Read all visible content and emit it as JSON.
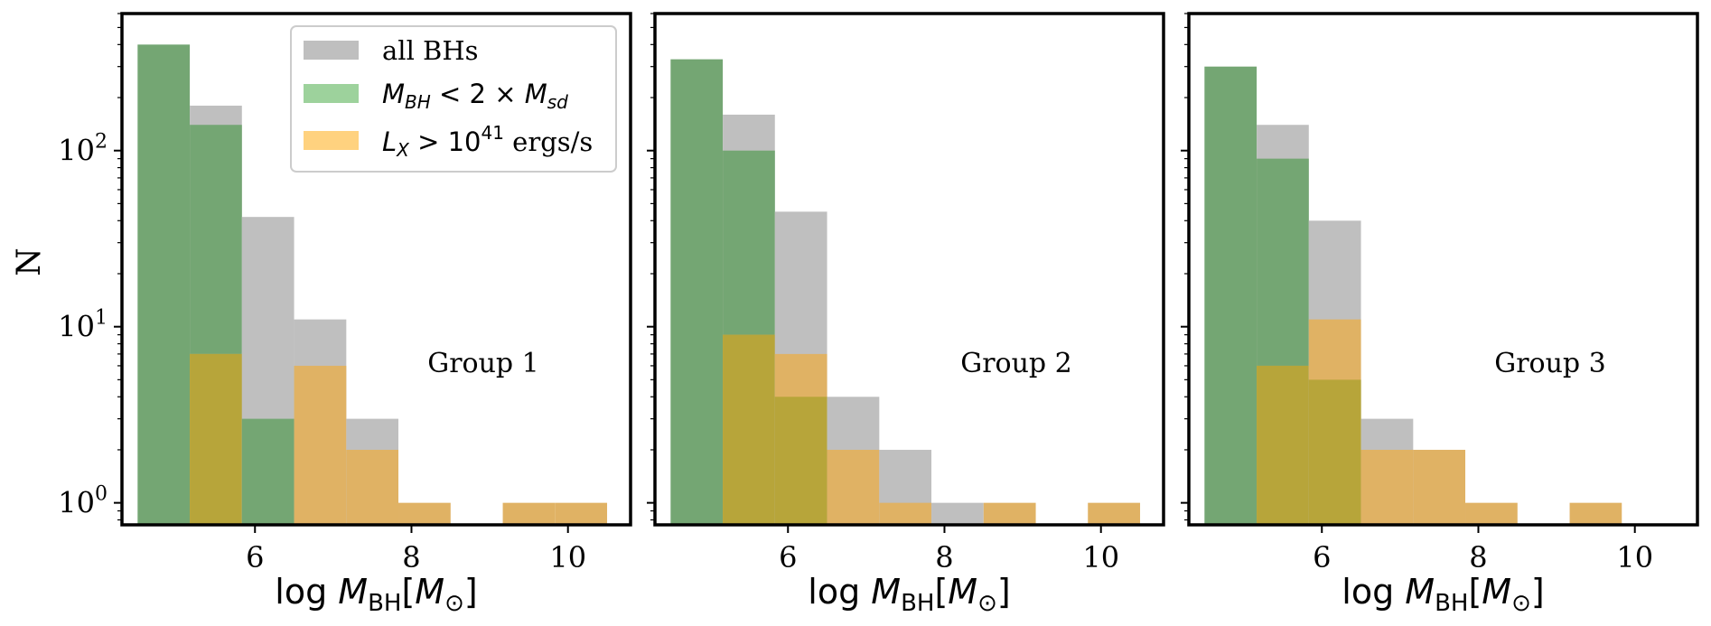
{
  "chart_data": [
    {
      "type": "bar",
      "annotation": "Group 1",
      "xlabel": "log M_BH[M_⊙]",
      "ylabel": "N",
      "yscale": "log",
      "xlim": [
        4.3,
        10.8
      ],
      "ylim": [
        0.75,
        600
      ],
      "xticks": [
        6,
        8,
        10
      ],
      "yticks": [
        1,
        10,
        100
      ],
      "bin_edges": [
        4.5,
        5.167,
        5.833,
        6.5,
        7.167,
        7.833,
        8.5,
        9.167,
        9.833,
        10.5
      ],
      "series": [
        {
          "name": "all BHs",
          "color": "#bfbfbf",
          "values": [
            0,
            180,
            42,
            11,
            3,
            0,
            0,
            0,
            0
          ]
        },
        {
          "name": "M_BH < 2 × M_sd",
          "color": "#74a673",
          "values": [
            400,
            140,
            3,
            0,
            0,
            0,
            0,
            0,
            0
          ]
        },
        {
          "name": "L_X > 10^41 ergs/s",
          "color": "#e0b264",
          "values": [
            0,
            7,
            0,
            6,
            2,
            1,
            0,
            1,
            1
          ]
        }
      ]
    },
    {
      "type": "bar",
      "annotation": "Group 2",
      "xlabel": "log M_BH[M_⊙]",
      "yscale": "log",
      "xlim": [
        4.3,
        10.8
      ],
      "ylim": [
        0.75,
        600
      ],
      "xticks": [
        6,
        8,
        10
      ],
      "bin_edges": [
        4.5,
        5.167,
        5.833,
        6.5,
        7.167,
        7.833,
        8.5,
        9.167,
        9.833,
        10.5
      ],
      "series": [
        {
          "name": "all BHs",
          "color": "#bfbfbf",
          "values": [
            0,
            160,
            45,
            4,
            2,
            1,
            0,
            0,
            0
          ]
        },
        {
          "name": "M_BH < 2 × M_sd",
          "color": "#74a673",
          "values": [
            330,
            100,
            4,
            0,
            0,
            0,
            0,
            0,
            0
          ]
        },
        {
          "name": "L_X > 10^41 ergs/s",
          "color": "#e0b264",
          "values": [
            0,
            9,
            7,
            2,
            1,
            0,
            1,
            0,
            1
          ]
        }
      ]
    },
    {
      "type": "bar",
      "annotation": "Group 3",
      "xlabel": "log M_BH[M_⊙]",
      "yscale": "log",
      "xlim": [
        4.3,
        10.8
      ],
      "ylim": [
        0.75,
        600
      ],
      "xticks": [
        6,
        8,
        10
      ],
      "bin_edges": [
        4.5,
        5.167,
        5.833,
        6.5,
        7.167,
        7.833,
        8.5,
        9.167,
        9.833,
        10.5
      ],
      "series": [
        {
          "name": "all BHs",
          "color": "#bfbfbf",
          "values": [
            0,
            140,
            40,
            3,
            0,
            0,
            0,
            0,
            0
          ]
        },
        {
          "name": "M_BH < 2 × M_sd",
          "color": "#74a673",
          "values": [
            300,
            90,
            5,
            0,
            0,
            0,
            0,
            0,
            0
          ]
        },
        {
          "name": "L_X > 10^41 ergs/s",
          "color": "#e0b264",
          "values": [
            0,
            6,
            11,
            2,
            2,
            1,
            0,
            1,
            0
          ]
        }
      ]
    }
  ],
  "legend": {
    "placement": "top-right of first panel",
    "items": [
      {
        "label": "all BHs",
        "color": "#bfbfbf"
      },
      {
        "label": "M_BH < 2 × M_sd",
        "color": "#9dd29c"
      },
      {
        "label": "L_X > 10^41 ergs/s",
        "color": "#ffd27f"
      }
    ]
  }
}
